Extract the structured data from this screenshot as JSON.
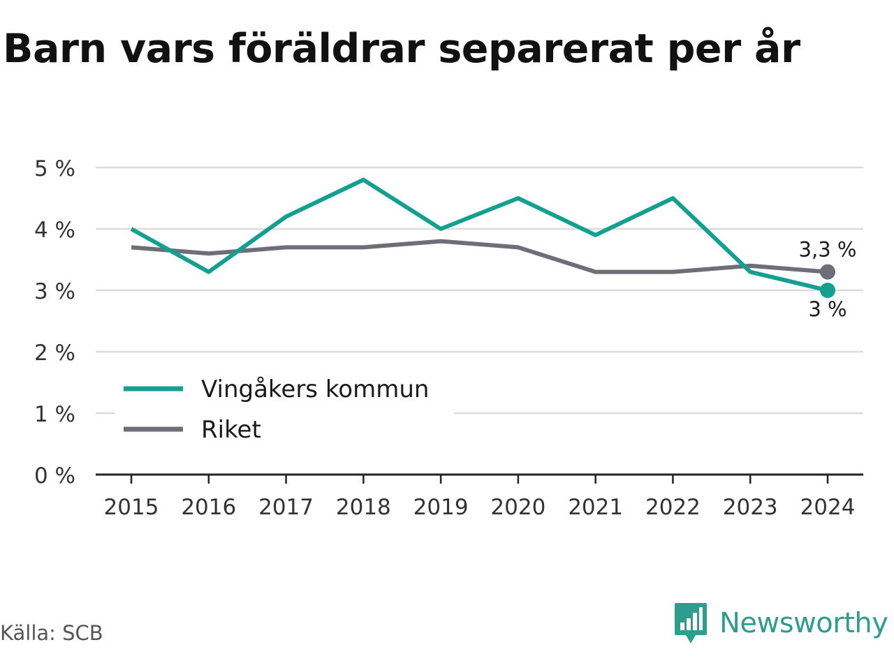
{
  "title": "Barn vars föräldrar separerat per år",
  "source": "Källa: SCB",
  "brand": {
    "name": "Newsworthy",
    "icon": "newsworthy-logo-icon",
    "color": "#2e9c8f"
  },
  "chart_data": {
    "type": "line",
    "title": "Barn vars föräldrar separerat per år",
    "x": [
      "2015",
      "2016",
      "2017",
      "2018",
      "2019",
      "2020",
      "2021",
      "2022",
      "2023",
      "2024"
    ],
    "yticks": [
      "0 %",
      "1 %",
      "2 %",
      "3 %",
      "4 %",
      "5 %"
    ],
    "ylim": [
      0,
      5
    ],
    "grid": true,
    "legend": "bottom-left",
    "series": [
      {
        "name": "Vingåkers kommun",
        "color": "#14a090",
        "values": [
          4.0,
          3.3,
          4.2,
          4.8,
          4.0,
          4.5,
          3.9,
          4.5,
          3.3,
          3.0
        ],
        "end_label": "3 %"
      },
      {
        "name": "Riket",
        "color": "#6e6e78",
        "values": [
          3.7,
          3.6,
          3.7,
          3.7,
          3.8,
          3.7,
          3.3,
          3.3,
          3.4,
          3.3
        ],
        "end_label": "3,3 %"
      }
    ]
  }
}
